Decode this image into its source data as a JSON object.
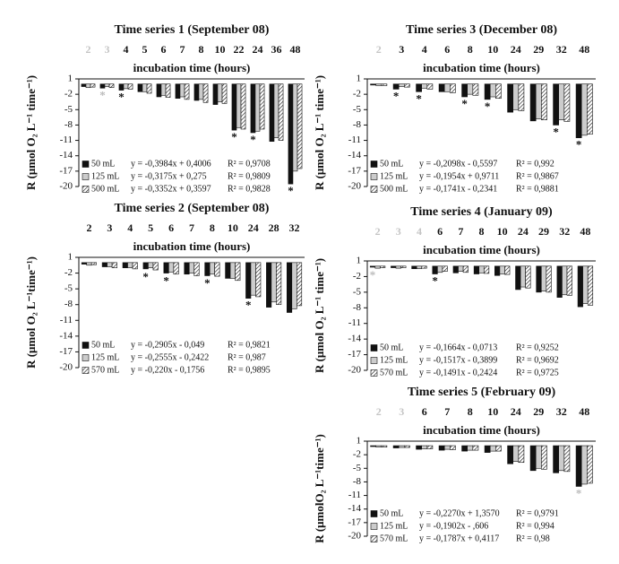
{
  "chart_data": [
    {
      "type": "bar",
      "title": "Time series 1 (September 08)",
      "x_label": "incubation time (hours)",
      "y_label": "R (μmol O₂ L⁻¹ time⁻¹)",
      "categories": [
        "2",
        "3",
        "4",
        "5",
        "6",
        "7",
        "8",
        "10",
        "22",
        "24",
        "36",
        "48"
      ],
      "muted_categories": [
        "2",
        "3"
      ],
      "ylim": [
        -20,
        1
      ],
      "yticks": [
        1,
        -2,
        -5,
        -8,
        -11,
        -14,
        -17,
        -20
      ],
      "series": [
        {
          "name": "50 mL",
          "color": "#111111",
          "equation": "y = -0,3984x + 0,4006",
          "r2": "R² = 0,9708",
          "values": [
            -0.5,
            -0.8,
            -1.2,
            -1.5,
            -2.5,
            -2.8,
            -3.2,
            -4.0,
            -9.0,
            -9.5,
            -11.2,
            -19.5
          ]
        },
        {
          "name": "125 mL",
          "color": "#cccccc",
          "equation": "y = -0,3175x + 0,275",
          "r2": "R² = 0,9809",
          "values": [
            -0.7,
            -0.5,
            -0.9,
            -1.5,
            -2.2,
            -2.5,
            -3.0,
            -3.5,
            -8.5,
            -9.2,
            -10.5,
            -17.0
          ]
        },
        {
          "name": "500 mL",
          "color": "#ffffff",
          "pattern": "hatch",
          "equation": "y = -0,3352x + 0,3597",
          "r2": "R² = 0,9828",
          "values": [
            -0.6,
            -0.7,
            -1.0,
            -1.8,
            -2.6,
            -3.0,
            -3.6,
            -3.8,
            -8.8,
            -8.8,
            -11.0,
            -16.5
          ]
        }
      ],
      "annotations": [
        {
          "x": "3",
          "text": "*",
          "muted": true
        },
        {
          "x": "4",
          "text": "*"
        },
        {
          "x": "22",
          "text": "*"
        },
        {
          "x": "24",
          "text": "*"
        },
        {
          "x": "48",
          "text": "*"
        }
      ]
    },
    {
      "type": "bar",
      "title": "Time series 2 (September 08)",
      "x_label": "incubation time (hours)",
      "y_label": "R (μmol O₂ L⁻¹time⁻¹)",
      "categories": [
        "2",
        "3",
        "4",
        "5",
        "6",
        "7",
        "8",
        "10",
        "24",
        "28",
        "32"
      ],
      "muted_categories": [],
      "ylim": [
        -20,
        1
      ],
      "yticks": [
        1,
        -2,
        -5,
        -8,
        -11,
        -14,
        -17,
        -20
      ],
      "series": [
        {
          "name": "50 mL",
          "color": "#111111",
          "equation": "y = -0,2905x - 0,049",
          "r2": "R² = 0,9821",
          "values": [
            -0.3,
            -0.8,
            -1.0,
            -1.2,
            -2.0,
            -2.2,
            -2.5,
            -3.0,
            -6.8,
            -8.5,
            -9.5
          ]
        },
        {
          "name": "125 mL",
          "color": "#cccccc",
          "equation": "y = -0,2555x - 0,2422",
          "r2": "R² = 0,987",
          "values": [
            -0.5,
            -0.8,
            -1.0,
            -1.0,
            -1.8,
            -2.0,
            -2.2,
            -3.0,
            -6.2,
            -7.5,
            -8.8
          ]
        },
        {
          "name": "570 mL",
          "color": "#ffffff",
          "pattern": "hatch",
          "equation": "y = -0,220x - 0,1756",
          "r2": "R² = 0,9895",
          "values": [
            -0.4,
            -1.0,
            -1.2,
            -1.4,
            -2.2,
            -2.5,
            -2.6,
            -3.4,
            -6.5,
            -8.0,
            -8.2
          ]
        }
      ],
      "annotations": [
        {
          "x": "5",
          "text": "*"
        },
        {
          "x": "6",
          "text": "*"
        },
        {
          "x": "8",
          "text": "*"
        },
        {
          "x": "24",
          "text": "*"
        }
      ]
    },
    {
      "type": "bar",
      "title": "Time series 3 (December 08)",
      "x_label": "incubation time (hours)",
      "y_label": "R (μmol O₂ L⁻¹ time⁻¹)",
      "categories": [
        "2",
        "3",
        "4",
        "6",
        "8",
        "10",
        "24",
        "29",
        "32",
        "48"
      ],
      "muted_categories": [
        "2"
      ],
      "ylim": [
        -20,
        1
      ],
      "yticks": [
        1,
        -2,
        -5,
        -8,
        -11,
        -14,
        -17,
        -20
      ],
      "series": [
        {
          "name": "50 mL",
          "color": "#111111",
          "equation": "y = -0,2098x - 0,5597",
          "r2": "R² = 0,992",
          "values": [
            -0.2,
            -1.0,
            -1.5,
            -1.5,
            -2.5,
            -3.0,
            -5.5,
            -7.2,
            -8.0,
            -10.5
          ]
        },
        {
          "name": "125 mL",
          "color": "#cccccc",
          "equation": "y = -0,1954x + 0,9711",
          "r2": "R² = 0,9867",
          "values": [
            -0.3,
            -0.5,
            -0.8,
            -1.5,
            -2.0,
            -2.5,
            -5.0,
            -6.8,
            -7.0,
            -10.0
          ]
        },
        {
          "name": "500 mL",
          "color": "#ffffff",
          "pattern": "hatch",
          "equation": "y = -0,1741x - 0,2341",
          "r2": "R² = 0,9881",
          "values": [
            -0.3,
            -0.6,
            -1.0,
            -1.7,
            -2.2,
            -2.8,
            -5.2,
            -7.0,
            -7.3,
            -9.8
          ]
        }
      ],
      "annotations": [
        {
          "x": "3",
          "text": "*"
        },
        {
          "x": "4",
          "text": "*"
        },
        {
          "x": "8",
          "text": "*"
        },
        {
          "x": "10",
          "text": "*"
        },
        {
          "x": "32",
          "text": "*"
        },
        {
          "x": "48",
          "text": "*"
        }
      ]
    },
    {
      "type": "bar",
      "title": "Time series 4 (January 09)",
      "x_label": "incubation time (hours)",
      "y_label": "R (μmol O₂ L⁻¹ time⁻¹)",
      "categories": [
        "2",
        "3",
        "4",
        "6",
        "7",
        "8",
        "10",
        "24",
        "29",
        "32",
        "48"
      ],
      "muted_categories": [
        "2",
        "3",
        "4"
      ],
      "ylim": [
        -20,
        1
      ],
      "yticks": [
        1,
        -2,
        -5,
        -8,
        -11,
        -14,
        -17,
        -20
      ],
      "series": [
        {
          "name": "50 mL",
          "color": "#111111",
          "equation": "y = -0,1664x - 0,0713",
          "r2": "R² = 0,9252",
          "values": [
            -0.2,
            -0.3,
            -0.5,
            -1.5,
            -1.3,
            -1.5,
            -1.8,
            -4.5,
            -5.0,
            -6.0,
            -7.8
          ]
        },
        {
          "name": "125 mL",
          "color": "#cccccc",
          "equation": "y = -0,1517x - 0,3899",
          "r2": "R² = 0,9692",
          "values": [
            -0.4,
            -0.4,
            -0.5,
            -1.2,
            -1.0,
            -1.3,
            -1.5,
            -4.0,
            -4.8,
            -5.5,
            -7.2
          ]
        },
        {
          "name": "570 mL",
          "color": "#ffffff",
          "pattern": "hatch",
          "equation": "y = -0,1491x - 0,2424",
          "r2": "R² = 0,9725",
          "values": [
            -0.3,
            -0.3,
            -0.4,
            -1.0,
            -1.2,
            -1.4,
            -1.6,
            -4.2,
            -5.0,
            -5.6,
            -7.5
          ]
        }
      ],
      "annotations": [
        {
          "x": "2",
          "text": "*",
          "muted": true
        },
        {
          "x": "6",
          "text": "*"
        }
      ]
    },
    {
      "type": "bar",
      "title": "Time series 5 (February 09)",
      "x_label": "incubation time (hours)",
      "y_label": "R (μmolO₂ L⁻¹time⁻¹)",
      "categories": [
        "2",
        "3",
        "6",
        "7",
        "8",
        "10",
        "24",
        "29",
        "32",
        "48"
      ],
      "muted_categories": [
        "2",
        "3"
      ],
      "ylim": [
        -20,
        1
      ],
      "yticks": [
        1,
        -2,
        -5,
        -8,
        -11,
        -14,
        -17,
        -20
      ],
      "series": [
        {
          "name": "50 mL",
          "color": "#111111",
          "equation": "y = -0,2270x + 1,3570",
          "r2": "R² = 0,9791",
          "values": [
            -0.2,
            -0.5,
            -0.8,
            -1.0,
            -1.2,
            -1.5,
            -4.0,
            -5.5,
            -6.0,
            -9.0
          ]
        },
        {
          "name": "125 mL",
          "color": "#cccccc",
          "equation": "y = -0,1902x - ,606",
          "r2": "R² = 0,994",
          "values": [
            -0.3,
            -0.4,
            -0.7,
            -0.8,
            -1.0,
            -1.2,
            -3.5,
            -5.0,
            -5.5,
            -8.5
          ]
        },
        {
          "name": "570 mL",
          "color": "#ffffff",
          "pattern": "hatch",
          "equation": "y = -0,1787x + 0,4117",
          "r2": "R² = 0,98",
          "values": [
            -0.3,
            -0.4,
            -0.7,
            -0.9,
            -1.0,
            -1.2,
            -3.7,
            -5.2,
            -5.7,
            -8.3
          ]
        }
      ],
      "annotations": [
        {
          "x": "48",
          "text": "*",
          "muted": true
        }
      ]
    }
  ]
}
